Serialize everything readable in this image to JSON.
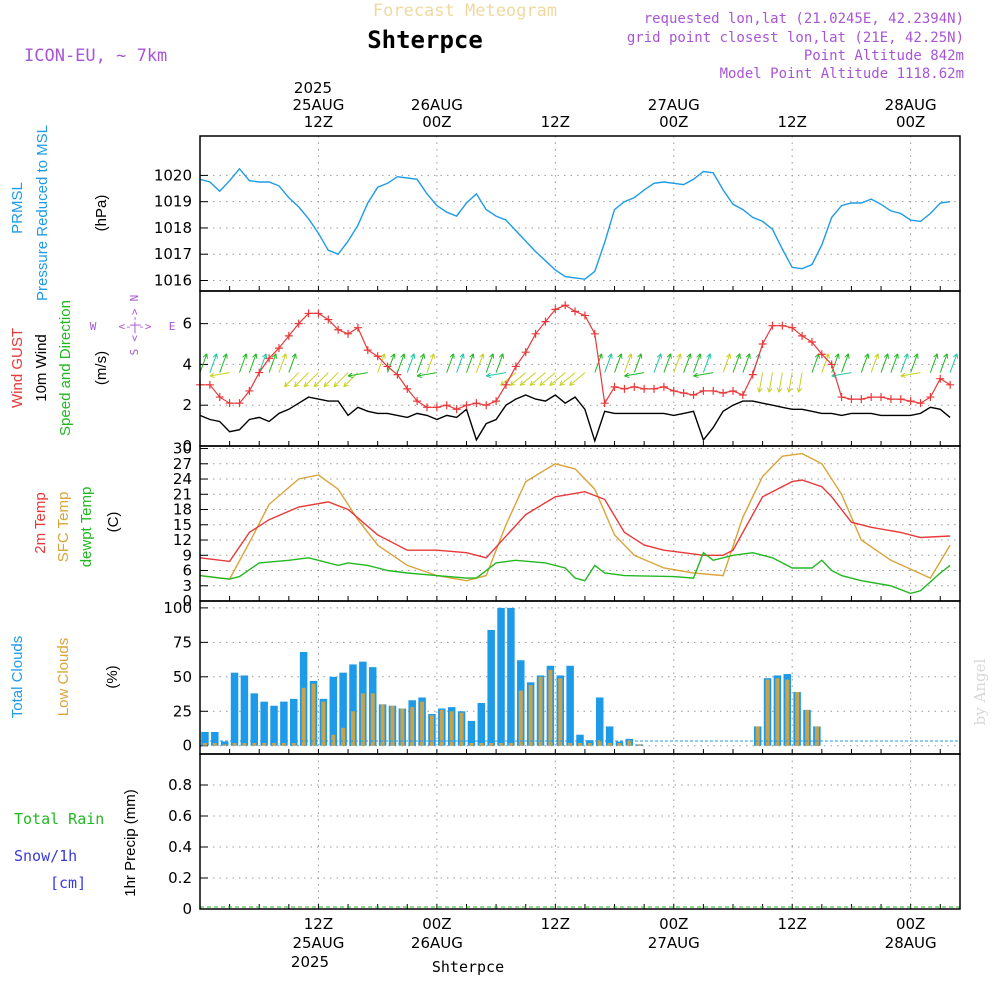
{
  "header": {
    "subtitle": "Forecast Meteogram",
    "title": "Shterpce",
    "model": "ICON-EU, ~ 7km",
    "requested": "requested lon,lat (21.0245E, 42.2394N)",
    "gridpoint": "grid point closest lon,lat (21E, 42.25N)",
    "point_alt": "Point Altitude 842m",
    "model_alt": "Model Point Altitude 1118.62m",
    "footer": "Shterpce",
    "credit": "by Angel"
  },
  "colors": {
    "pressure": "#1e9be8",
    "gust": "#e8393a",
    "wind": "#000000",
    "dir": "#22b822",
    "temp2m": "#e8393a",
    "sfc": "#d9a43a",
    "dewpt": "#22b822",
    "total_clouds": "#1e9be8",
    "low_clouds": "#c9a24a",
    "rain": "#22b822",
    "snow": "#3a3ad9",
    "header_meta": "#a855d6",
    "subtitle": "#f0d9a0"
  },
  "time_axis": {
    "top_year": "2025",
    "ticks": [
      {
        "t": 12,
        "top": "25AUG",
        "hour": "12Z",
        "bottom": "25AUG"
      },
      {
        "t": 24,
        "top": "26AUG",
        "hour": "00Z",
        "bottom": "26AUG"
      },
      {
        "t": 36,
        "top": "",
        "hour": "12Z",
        "bottom": ""
      },
      {
        "t": 48,
        "top": "27AUG",
        "hour": "00Z",
        "bottom": "27AUG"
      },
      {
        "t": 60,
        "top": "",
        "hour": "12Z",
        "bottom": ""
      },
      {
        "t": 72,
        "top": "28AUG",
        "hour": "00Z",
        "bottom": "28AUG"
      }
    ],
    "bottom_year": "2025",
    "range": [
      0,
      77
    ]
  },
  "chart_data": [
    {
      "type": "line",
      "id": "pressure",
      "labels": [
        "PRMSL",
        "Pressure Reduced to MSL",
        "(hPa)"
      ],
      "ylim": [
        1015.6,
        1021.5
      ],
      "yticks": [
        1016,
        1017,
        1018,
        1019,
        1020
      ],
      "series": [
        {
          "name": "PRMSL",
          "x": [
            0,
            1,
            2,
            3,
            4,
            5,
            6,
            7,
            8,
            9,
            10,
            11,
            12,
            13,
            14,
            15,
            16,
            17,
            18,
            19,
            20,
            21,
            22,
            23,
            24,
            25,
            26,
            27,
            28,
            29,
            30,
            31,
            32,
            33,
            34,
            35,
            36,
            37,
            38,
            39,
            40,
            41,
            42,
            43,
            44,
            45,
            46,
            47,
            48,
            49,
            50,
            51,
            52,
            53,
            54,
            55,
            56,
            57,
            58,
            59,
            60,
            61,
            62,
            63,
            64,
            65,
            66,
            67,
            68,
            69,
            70,
            71,
            72,
            73,
            74,
            75,
            76
          ],
          "values": [
            1019.85,
            1019.75,
            1019.4,
            1019.8,
            1020.25,
            1019.8,
            1019.75,
            1019.75,
            1019.6,
            1019.15,
            1018.8,
            1018.35,
            1017.8,
            1017.15,
            1017.0,
            1017.5,
            1018.1,
            1018.95,
            1019.55,
            1019.7,
            1019.95,
            1019.9,
            1019.85,
            1019.3,
            1018.85,
            1018.6,
            1018.45,
            1018.95,
            1019.3,
            1018.7,
            1018.45,
            1018.3,
            1017.9,
            1017.5,
            1017.1,
            1016.75,
            1016.4,
            1016.15,
            1016.1,
            1016.05,
            1016.35,
            1017.45,
            1018.7,
            1019.0,
            1019.15,
            1019.45,
            1019.7,
            1019.75,
            1019.7,
            1019.65,
            1019.85,
            1020.15,
            1020.1,
            1019.45,
            1018.9,
            1018.7,
            1018.4,
            1018.25,
            1017.95,
            1017.2,
            1016.5,
            1016.45,
            1016.6,
            1017.35,
            1018.4,
            1018.85,
            1018.95,
            1018.95,
            1019.1,
            1018.9,
            1018.65,
            1018.55,
            1018.3,
            1018.25,
            1018.55,
            1018.95,
            1019.0
          ]
        }
      ]
    },
    {
      "type": "line",
      "id": "wind",
      "labels": [
        "Wind GUST",
        "10m Wind",
        "Speed and Direction",
        "(m/s)"
      ],
      "compass": {
        "n": "N",
        "s": "S",
        "w": "W",
        "e": "E"
      },
      "ylim": [
        0,
        7.6
      ],
      "yticks": [
        0,
        2,
        4,
        6
      ],
      "series": [
        {
          "name": "Wind GUST",
          "x": [
            0,
            1,
            2,
            3,
            4,
            5,
            6,
            7,
            8,
            9,
            10,
            11,
            12,
            13,
            14,
            15,
            16,
            17,
            18,
            19,
            20,
            21,
            22,
            23,
            24,
            25,
            26,
            27,
            28,
            29,
            30,
            31,
            32,
            33,
            34,
            35,
            36,
            37,
            38,
            39,
            40,
            41,
            42,
            43,
            44,
            45,
            46,
            47,
            48,
            49,
            50,
            51,
            52,
            53,
            54,
            55,
            56,
            57,
            58,
            59,
            60,
            61,
            62,
            63,
            64,
            65,
            66,
            67,
            68,
            69,
            70,
            71,
            72,
            73,
            74,
            75,
            76
          ],
          "values": [
            3.0,
            3.0,
            2.4,
            2.1,
            2.1,
            2.7,
            3.6,
            4.3,
            4.8,
            5.4,
            6.0,
            6.5,
            6.5,
            6.2,
            5.7,
            5.5,
            5.8,
            4.7,
            4.4,
            3.9,
            3.5,
            2.8,
            2.2,
            1.9,
            1.9,
            2.0,
            1.8,
            2.0,
            2.1,
            2.0,
            2.2,
            3.0,
            3.9,
            4.6,
            5.5,
            6.1,
            6.7,
            6.9,
            6.6,
            6.4,
            5.5,
            2.1,
            2.9,
            2.8,
            2.9,
            2.8,
            2.8,
            2.9,
            2.7,
            2.6,
            2.5,
            2.7,
            2.7,
            2.6,
            2.7,
            2.5,
            3.5,
            5.0,
            5.9,
            5.9,
            5.8,
            5.4,
            5.1,
            4.5,
            4.0,
            2.4,
            2.3,
            2.3,
            2.4,
            2.4,
            2.3,
            2.3,
            2.2,
            2.1,
            2.4,
            3.3,
            3.0
          ]
        },
        {
          "name": "10m Wind",
          "x": [
            0,
            1,
            2,
            3,
            4,
            5,
            6,
            7,
            8,
            9,
            10,
            11,
            12,
            13,
            14,
            15,
            16,
            17,
            18,
            19,
            20,
            21,
            22,
            23,
            24,
            25,
            26,
            27,
            28,
            29,
            30,
            31,
            32,
            33,
            34,
            35,
            36,
            37,
            38,
            39,
            40,
            41,
            42,
            43,
            44,
            45,
            46,
            47,
            48,
            49,
            50,
            51,
            52,
            53,
            54,
            55,
            56,
            57,
            58,
            59,
            60,
            61,
            62,
            63,
            64,
            65,
            66,
            67,
            68,
            69,
            70,
            71,
            72,
            73,
            74,
            75,
            76
          ],
          "values": [
            1.5,
            1.3,
            1.2,
            0.7,
            0.8,
            1.3,
            1.4,
            1.2,
            1.6,
            1.8,
            2.1,
            2.4,
            2.3,
            2.2,
            2.2,
            1.5,
            1.9,
            1.7,
            1.6,
            1.6,
            1.5,
            1.4,
            1.6,
            1.5,
            1.3,
            1.5,
            1.4,
            1.8,
            0.3,
            1.1,
            1.3,
            2.0,
            2.3,
            2.5,
            2.3,
            2.2,
            2.5,
            2.1,
            2.4,
            1.8,
            0.25,
            1.7,
            1.6,
            1.6,
            1.6,
            1.6,
            1.6,
            1.6,
            1.5,
            1.6,
            1.7,
            0.3,
            0.9,
            1.7,
            2.0,
            2.2,
            2.2,
            2.1,
            2.0,
            1.9,
            1.8,
            1.8,
            1.7,
            1.6,
            1.6,
            1.5,
            1.6,
            1.6,
            1.6,
            1.5,
            1.5,
            1.5,
            1.5,
            1.6,
            1.9,
            1.8,
            1.4
          ]
        }
      ]
    },
    {
      "type": "line",
      "id": "temperature",
      "labels": [
        "2m Temp",
        "SFC Temp",
        "dewpt Temp",
        "(C)"
      ],
      "ylim": [
        0,
        30.5
      ],
      "yticks": [
        0,
        3,
        6,
        9,
        12,
        15,
        18,
        21,
        24,
        27,
        30
      ],
      "series": [
        {
          "name": "2m Temp",
          "x": [
            0,
            3,
            5,
            7,
            10,
            13,
            15,
            18,
            21,
            24,
            27,
            29,
            33,
            36,
            39,
            41,
            43,
            45,
            47,
            49,
            51,
            53,
            54,
            57,
            60,
            61,
            63,
            64,
            66,
            68,
            71,
            73,
            76
          ],
          "values": [
            8.5,
            7.8,
            13.5,
            16.0,
            18.5,
            19.5,
            18.0,
            13.0,
            10.0,
            10.0,
            9.5,
            8.5,
            17.0,
            20.5,
            21.5,
            20.0,
            13.5,
            11.0,
            10.0,
            9.5,
            9.0,
            9.0,
            10.0,
            20.5,
            23.5,
            23.8,
            22.5,
            20.5,
            15.5,
            14.5,
            13.5,
            12.5,
            12.8
          ]
        },
        {
          "name": "SFC Temp",
          "x": [
            0,
            3,
            5,
            7,
            10,
            12,
            14,
            16,
            18,
            21,
            24,
            27,
            29,
            31,
            33,
            36,
            38,
            40,
            42,
            44,
            47,
            50,
            53,
            55,
            57,
            59,
            61,
            63,
            65,
            67,
            70,
            74,
            76
          ],
          "values": [
            5.0,
            4.3,
            11.5,
            19.0,
            24.0,
            24.8,
            22.0,
            16.0,
            11.0,
            7.0,
            5.0,
            4.0,
            5.0,
            15.0,
            23.5,
            27.0,
            26.0,
            22.0,
            13.0,
            9.0,
            6.5,
            5.5,
            5.0,
            16.5,
            24.5,
            28.5,
            29.0,
            27.0,
            21.0,
            12.0,
            8.0,
            4.5,
            11.0
          ]
        },
        {
          "name": "dewpt Temp",
          "x": [
            0,
            2,
            3,
            4,
            6,
            9,
            11,
            12,
            14,
            15,
            17,
            19,
            21,
            24,
            27,
            28,
            30,
            32,
            35,
            37,
            38,
            39,
            40,
            41,
            43,
            48,
            50,
            51,
            52,
            54,
            56,
            58,
            60,
            62,
            63,
            64,
            65,
            67,
            70,
            72,
            73,
            75,
            76
          ],
          "values": [
            5.0,
            4.5,
            4.3,
            4.8,
            7.5,
            8.0,
            8.5,
            8.0,
            7.0,
            7.5,
            7.0,
            6.0,
            5.5,
            5.0,
            4.5,
            4.5,
            7.5,
            8.0,
            7.5,
            6.5,
            4.5,
            4.0,
            7.0,
            5.5,
            5.0,
            4.8,
            4.5,
            9.5,
            8.0,
            9.0,
            9.5,
            8.5,
            6.5,
            6.5,
            8.0,
            6.0,
            5.0,
            4.0,
            3.0,
            1.5,
            2.0,
            5.5,
            7.0
          ]
        }
      ]
    },
    {
      "type": "bar",
      "id": "clouds",
      "labels": [
        "Total Clouds",
        "Low Clouds",
        "(%)"
      ],
      "ylim": [
        -6,
        105
      ],
      "yticks": [
        0,
        25,
        50,
        75,
        100
      ],
      "x": [
        0,
        1,
        2,
        3,
        4,
        5,
        6,
        7,
        8,
        9,
        10,
        11,
        12,
        13,
        14,
        15,
        16,
        17,
        18,
        19,
        20,
        21,
        22,
        23,
        24,
        25,
        26,
        27,
        28,
        29,
        30,
        31,
        32,
        33,
        34,
        35,
        36,
        37,
        38,
        39,
        40,
        41,
        42,
        43,
        44,
        45,
        46,
        47,
        48,
        49,
        50,
        51,
        52,
        53,
        54,
        55,
        56,
        57,
        58,
        59,
        60,
        61,
        62,
        63,
        64,
        65,
        66,
        67,
        68,
        69,
        70,
        71,
        72,
        73,
        74,
        75,
        76
      ],
      "series": [
        {
          "name": "Total Clouds",
          "values": [
            10,
            10,
            3,
            53,
            51,
            38,
            32,
            29,
            32,
            34,
            68,
            47,
            34,
            50,
            53,
            59,
            61,
            57,
            30,
            29,
            27,
            33,
            35,
            23,
            27,
            28,
            25,
            18,
            31,
            84,
            100,
            100,
            62,
            46,
            51,
            58,
            51,
            58,
            8,
            4,
            35,
            14,
            3,
            5,
            1,
            0,
            0,
            0,
            0,
            0,
            0,
            0,
            0,
            0,
            0,
            0,
            14,
            49,
            51,
            52,
            39,
            26,
            14,
            0,
            0,
            0,
            0,
            0,
            0,
            0,
            0,
            0,
            0,
            0,
            0,
            0,
            0
          ]
        },
        {
          "name": "Low Clouds",
          "values": [
            2,
            2,
            1,
            2,
            2,
            2,
            2,
            2,
            2,
            2,
            42,
            45,
            32,
            8,
            13,
            25,
            38,
            38,
            30,
            29,
            27,
            28,
            32,
            22,
            26,
            25,
            24,
            2,
            2,
            2,
            2,
            2,
            40,
            44,
            50,
            55,
            49,
            2,
            2,
            2,
            4,
            2,
            2,
            4,
            1,
            0,
            0,
            0,
            0,
            0,
            0,
            0,
            0,
            0,
            0,
            0,
            14,
            48,
            49,
            48,
            39,
            26,
            14,
            0,
            0,
            0,
            0,
            0,
            0,
            0,
            0,
            0,
            0,
            0,
            0,
            0,
            0
          ]
        }
      ]
    },
    {
      "type": "line",
      "id": "precip",
      "labels": [
        "Total Rain",
        "Snow/1h",
        "[cm]",
        "1hr Precip (mm)"
      ],
      "ylim": [
        0,
        1.0
      ],
      "yticks": [
        0,
        0.2,
        0.4,
        0.6,
        0.8
      ],
      "series": [
        {
          "name": "Total Rain",
          "x": [
            0,
            76
          ],
          "values": [
            0,
            0
          ]
        }
      ]
    }
  ]
}
